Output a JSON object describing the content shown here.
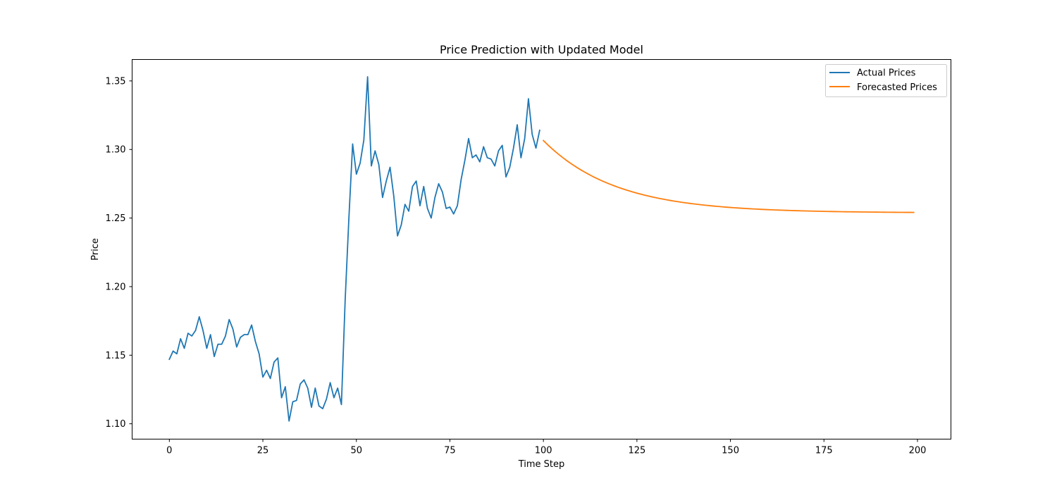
{
  "chart_data": {
    "type": "line",
    "title": "Price Prediction with Updated Model",
    "xlabel": "Time Step",
    "ylabel": "Price",
    "xlim": [
      -9.95,
      208.95
    ],
    "ylim": [
      1.0888,
      1.3656
    ],
    "xticks": [
      0,
      25,
      50,
      75,
      100,
      125,
      150,
      175,
      200
    ],
    "yticks": [
      1.1,
      1.15,
      1.2,
      1.25,
      1.3,
      1.35
    ],
    "xtick_labels": [
      "0",
      "25",
      "50",
      "75",
      "100",
      "125",
      "150",
      "175",
      "200"
    ],
    "ytick_labels": [
      "1.10",
      "1.15",
      "1.20",
      "1.25",
      "1.30",
      "1.35"
    ],
    "grid": false,
    "legend": "top-right",
    "series": [
      {
        "name": "Actual Prices",
        "color": "#1f77b4",
        "x_start": 0,
        "values": [
          1.147,
          1.153,
          1.151,
          1.162,
          1.155,
          1.166,
          1.164,
          1.168,
          1.178,
          1.168,
          1.155,
          1.165,
          1.149,
          1.158,
          1.158,
          1.164,
          1.176,
          1.169,
          1.156,
          1.163,
          1.165,
          1.165,
          1.172,
          1.16,
          1.151,
          1.134,
          1.139,
          1.133,
          1.145,
          1.148,
          1.119,
          1.127,
          1.102,
          1.116,
          1.117,
          1.129,
          1.132,
          1.126,
          1.112,
          1.126,
          1.113,
          1.111,
          1.118,
          1.13,
          1.119,
          1.126,
          1.114,
          1.19,
          1.25,
          1.304,
          1.282,
          1.29,
          1.307,
          1.353,
          1.288,
          1.299,
          1.289,
          1.265,
          1.277,
          1.287,
          1.266,
          1.237,
          1.245,
          1.26,
          1.255,
          1.273,
          1.277,
          1.259,
          1.273,
          1.257,
          1.25,
          1.265,
          1.275,
          1.269,
          1.257,
          1.258,
          1.253,
          1.259,
          1.278,
          1.292,
          1.308,
          1.294,
          1.296,
          1.291,
          1.302,
          1.294,
          1.293,
          1.288,
          1.299,
          1.303,
          1.28,
          1.287,
          1.301,
          1.318,
          1.294,
          1.308,
          1.337,
          1.311,
          1.301,
          1.314
        ]
      },
      {
        "name": "Forecasted Prices",
        "color": "#ff7f0e",
        "x_start": 100,
        "x_end": 199,
        "curve": {
          "start": 1.3065,
          "asymptote": 1.2538,
          "decay": 0.052
        }
      }
    ]
  }
}
